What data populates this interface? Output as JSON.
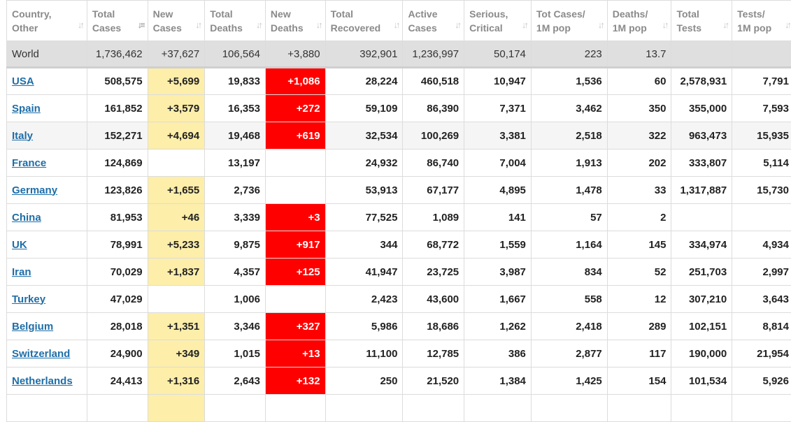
{
  "headers": [
    {
      "l1": "Country,",
      "l2": "Other"
    },
    {
      "l1": "Total",
      "l2": "Cases"
    },
    {
      "l1": "New",
      "l2": "Cases"
    },
    {
      "l1": "Total",
      "l2": "Deaths"
    },
    {
      "l1": "New",
      "l2": "Deaths"
    },
    {
      "l1": "Total",
      "l2": "Recovered"
    },
    {
      "l1": "Active",
      "l2": "Cases"
    },
    {
      "l1": "Serious,",
      "l2": "Critical"
    },
    {
      "l1": "Tot Cases/",
      "l2": "1M pop"
    },
    {
      "l1": "Deaths/",
      "l2": "1M pop"
    },
    {
      "l1": "Total",
      "l2": "Tests"
    },
    {
      "l1": "Tests/",
      "l2": "1M pop"
    }
  ],
  "sort_icons": {
    "default": "sort-icon",
    "active": "sort-desc-icon",
    "sorted_column": "Total Cases"
  },
  "colors": {
    "new_cases_bg": "#fdeeaa",
    "new_deaths_bg": "#ff0000",
    "link": "#1e6ea8",
    "world_row_bg": "#dfdfdf"
  },
  "world": [
    "World",
    "1,736,462",
    "+37,627",
    "106,564",
    "+3,880",
    "392,901",
    "1,236,997",
    "50,174",
    "223",
    "13.7",
    "",
    ""
  ],
  "rows": [
    [
      "USA",
      "508,575",
      "+5,699",
      "19,833",
      "+1,086",
      "28,224",
      "460,518",
      "10,947",
      "1,536",
      "60",
      "2,578,931",
      "7,791"
    ],
    [
      "Spain",
      "161,852",
      "+3,579",
      "16,353",
      "+272",
      "59,109",
      "86,390",
      "7,371",
      "3,462",
      "350",
      "355,000",
      "7,593"
    ],
    [
      "Italy",
      "152,271",
      "+4,694",
      "19,468",
      "+619",
      "32,534",
      "100,269",
      "3,381",
      "2,518",
      "322",
      "963,473",
      "15,935"
    ],
    [
      "France",
      "124,869",
      "",
      "13,197",
      "",
      "24,932",
      "86,740",
      "7,004",
      "1,913",
      "202",
      "333,807",
      "5,114"
    ],
    [
      "Germany",
      "123,826",
      "+1,655",
      "2,736",
      "",
      "53,913",
      "67,177",
      "4,895",
      "1,478",
      "33",
      "1,317,887",
      "15,730"
    ],
    [
      "China",
      "81,953",
      "+46",
      "3,339",
      "+3",
      "77,525",
      "1,089",
      "141",
      "57",
      "2",
      "",
      ""
    ],
    [
      "UK",
      "78,991",
      "+5,233",
      "9,875",
      "+917",
      "344",
      "68,772",
      "1,559",
      "1,164",
      "145",
      "334,974",
      "4,934"
    ],
    [
      "Iran",
      "70,029",
      "+1,837",
      "4,357",
      "+125",
      "41,947",
      "23,725",
      "3,987",
      "834",
      "52",
      "251,703",
      "2,997"
    ],
    [
      "Turkey",
      "47,029",
      "",
      "1,006",
      "",
      "2,423",
      "43,600",
      "1,667",
      "558",
      "12",
      "307,210",
      "3,643"
    ],
    [
      "Belgium",
      "28,018",
      "+1,351",
      "3,346",
      "+327",
      "5,986",
      "18,686",
      "1,262",
      "2,418",
      "289",
      "102,151",
      "8,814"
    ],
    [
      "Switzerland",
      "24,900",
      "+349",
      "1,015",
      "+13",
      "11,100",
      "12,785",
      "386",
      "2,877",
      "117",
      "190,000",
      "21,954"
    ],
    [
      "Netherlands",
      "24,413",
      "+1,316",
      "2,643",
      "+132",
      "250",
      "21,520",
      "1,384",
      "1,425",
      "154",
      "101,534",
      "5,926"
    ],
    [
      "",
      "",
      "",
      "",
      "",
      "",
      "",
      "",
      "",
      "",
      "",
      ""
    ]
  ]
}
